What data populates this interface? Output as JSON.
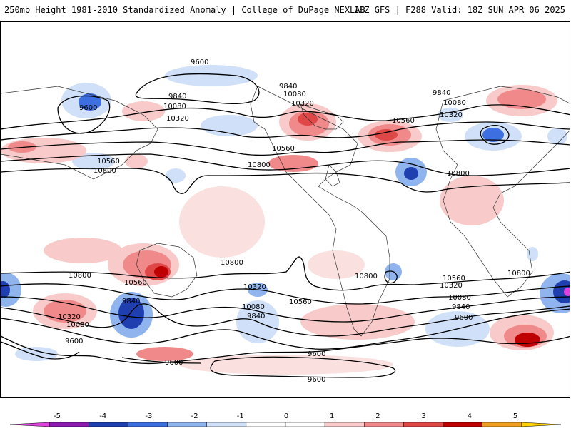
{
  "header": {
    "left_title": "250mb Height 1981-2010 Standardized Anomaly | College of DuPage NEXLAB",
    "right_title": "18Z GFS | F288 Valid: 18Z SUN APR 06 2025"
  },
  "contour_labels": [
    {
      "text": "9600"
    },
    {
      "text": "9600"
    },
    {
      "text": "9840"
    },
    {
      "text": "10080"
    },
    {
      "text": "10320"
    },
    {
      "text": "10560"
    },
    {
      "text": "10800"
    },
    {
      "text": "9840"
    },
    {
      "text": "10080"
    },
    {
      "text": "10320"
    },
    {
      "text": "10560"
    },
    {
      "text": "10800"
    },
    {
      "text": "9840"
    },
    {
      "text": "10080"
    },
    {
      "text": "10320"
    },
    {
      "text": "10560"
    },
    {
      "text": "10800"
    },
    {
      "text": "10800"
    },
    {
      "text": "10560"
    },
    {
      "text": "10320"
    },
    {
      "text": "10080"
    },
    {
      "text": "9600"
    },
    {
      "text": "9840"
    },
    {
      "text": "10800"
    },
    {
      "text": "10320"
    },
    {
      "text": "10080"
    },
    {
      "text": "9840"
    },
    {
      "text": "10560"
    },
    {
      "text": "10800"
    },
    {
      "text": "10560"
    },
    {
      "text": "10320"
    },
    {
      "text": "10080"
    },
    {
      "text": "9840"
    },
    {
      "text": "9600"
    },
    {
      "text": "9600"
    },
    {
      "text": "9600"
    },
    {
      "text": "9600"
    },
    {
      "text": "10800"
    }
  ],
  "colorbar": {
    "ticks": [
      "-5",
      "-4",
      "-3",
      "-2",
      "-1",
      "0",
      "1",
      "2",
      "3",
      "4",
      "5"
    ],
    "colors": [
      "#e040e0",
      "#8a1ab0",
      "#1f3fb0",
      "#3d6fe0",
      "#8fb4ee",
      "#cfe0f8",
      "#ffffff",
      "#ffffff",
      "#f8caca",
      "#f08a8a",
      "#e04848",
      "#c00000",
      "#f0a020",
      "#ffd000"
    ]
  }
}
